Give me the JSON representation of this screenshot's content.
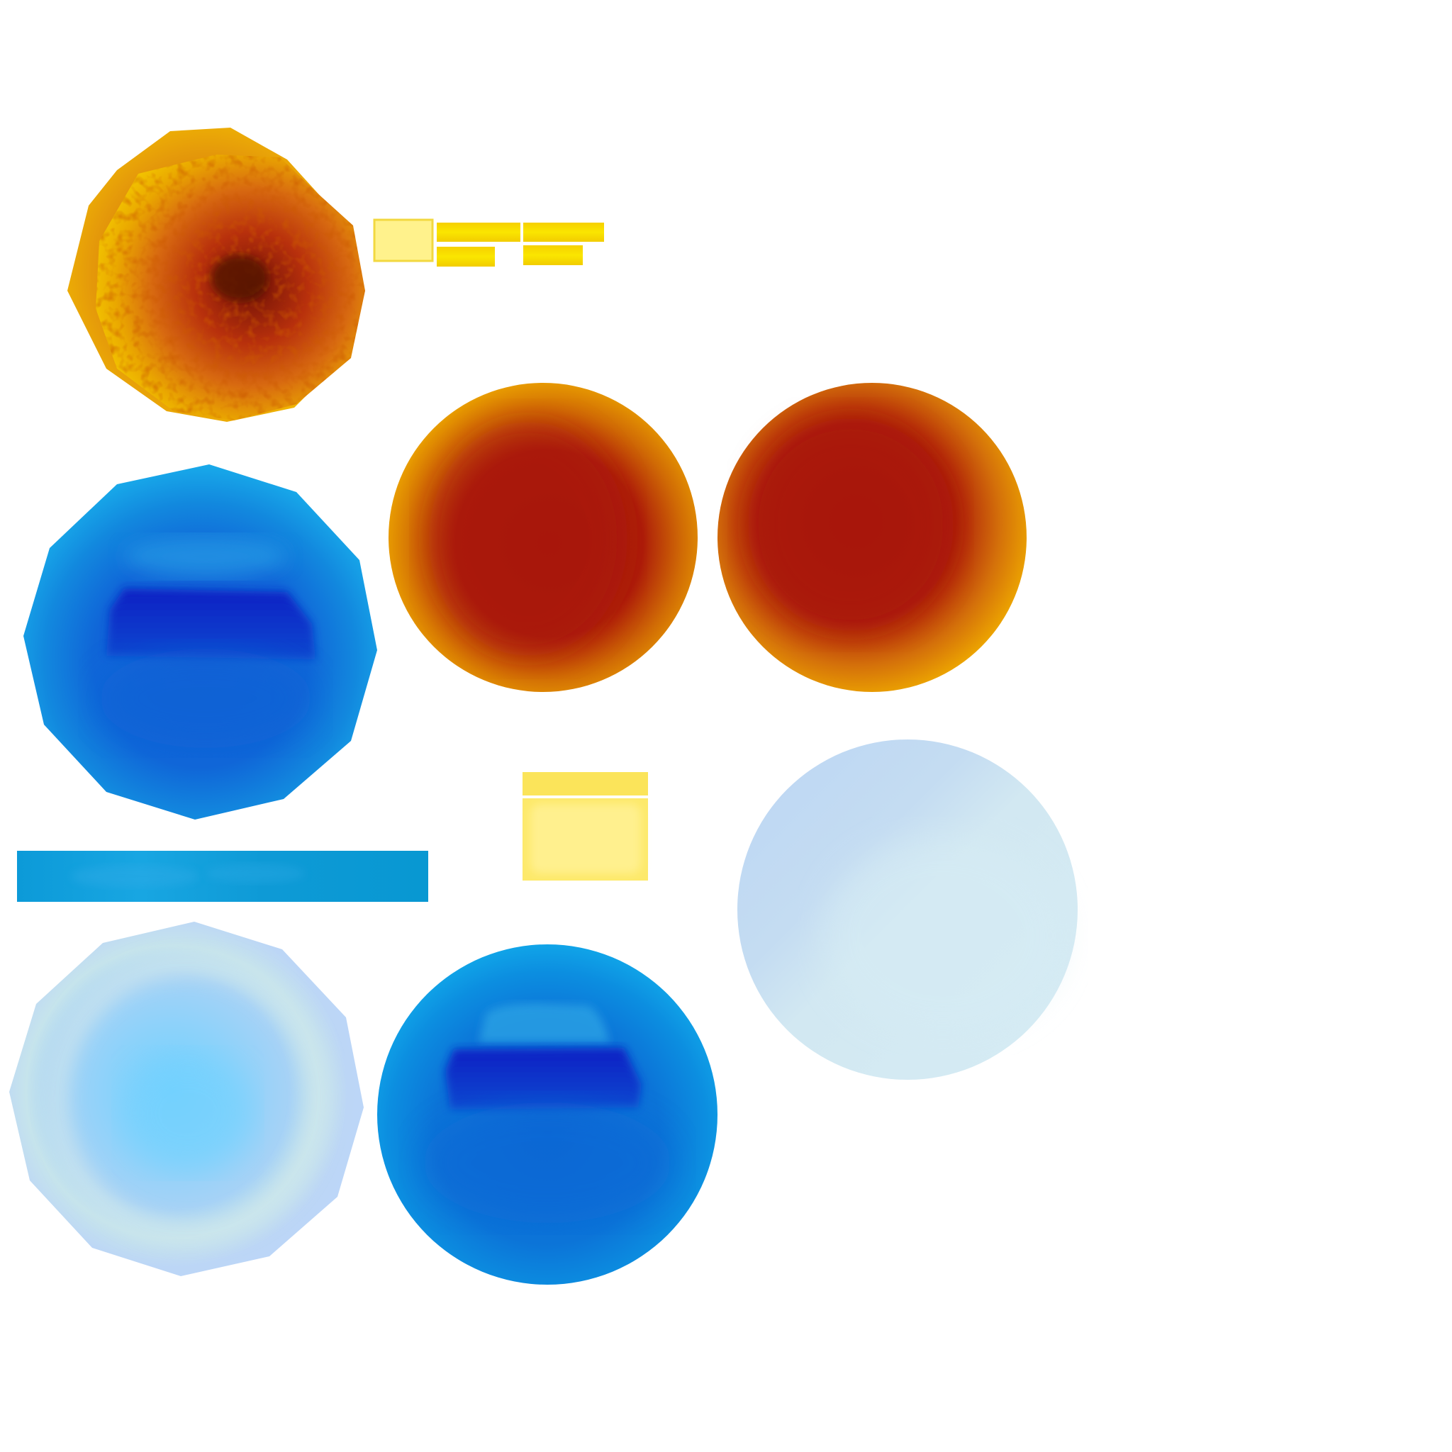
{
  "sheet": {
    "background": "#ffffff",
    "swatches": {
      "orange_outer": "#eaa300",
      "orange_mid": "#c84a06",
      "orange_core": "#a8170a",
      "orange_center": "#6a1a08",
      "yellow_light": "#fff08c",
      "yellow_bright": "#f8d800",
      "yellow_pale": "#ffef8e",
      "blue_edge": "#14a6e6",
      "blue_mid": "#1478d6",
      "blue_deep": "#0c2ec8",
      "blue_strip": "#0a9ad6",
      "ice_edge": "#bcd8f6",
      "ice_core": "#78d2fc",
      "pale_sphere_light": "#d6ecf4",
      "pale_sphere_shade": "#bcd8f4"
    }
  }
}
